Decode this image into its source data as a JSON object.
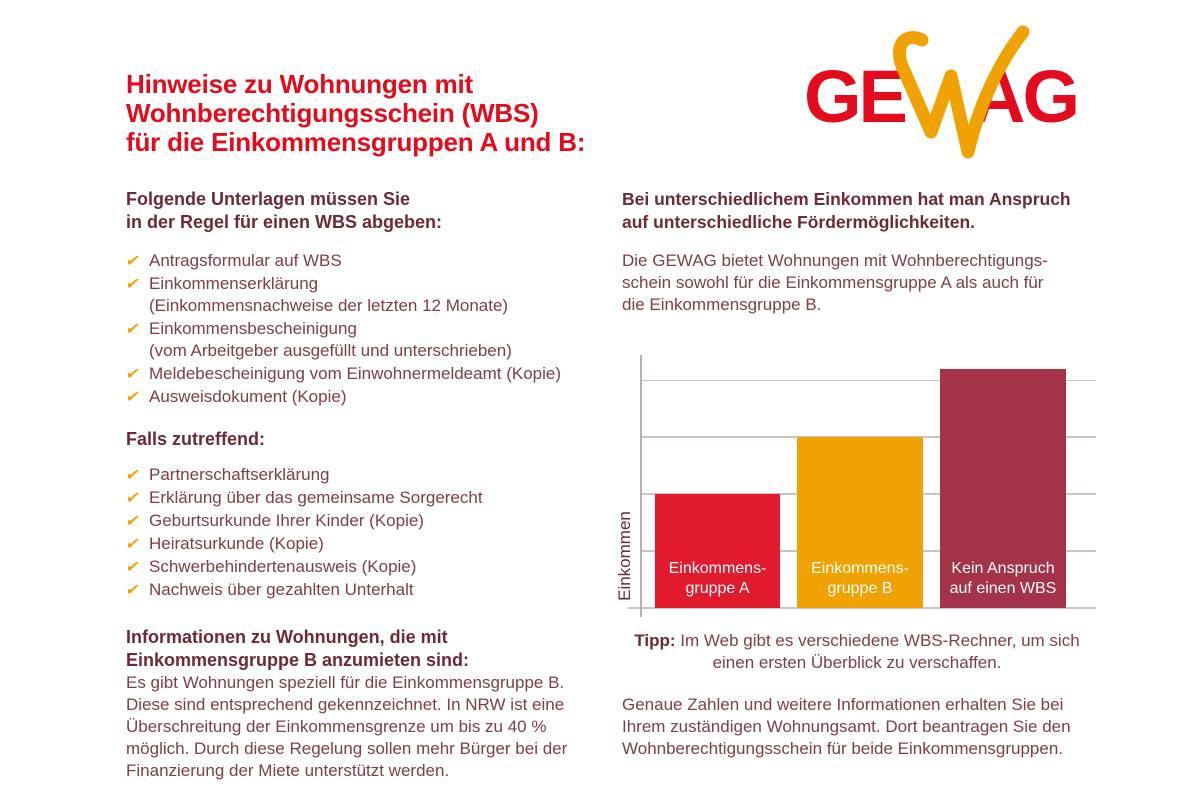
{
  "theme": {
    "red": "#e30b1c",
    "orange": "#f0a202",
    "maroon": "#7e3e47",
    "maroon-dark": "#6d2a35",
    "bar-red": "#e21a2e",
    "bar-orange": "#f0a202",
    "bar-maroon": "#a43248",
    "grid": "#cdc3c3",
    "axis": "#b9b0b0",
    "bg": "#ffffff",
    "bar-label": "#ffffff"
  },
  "icons": {
    "check": "✔"
  },
  "brand": {
    "name": "GEWAG",
    "ge": "GE",
    "w": "W",
    "ag": "AG"
  },
  "left": {
    "title": [
      "Hinweise zu Wohnungen mit",
      "Wohnberechtigungsschein (WBS)",
      "für die Einkommensgruppen A und B:"
    ],
    "documents": {
      "heading": [
        "Folgende Unterlagen müssen Sie",
        "in der Regel für einen WBS abgeben:"
      ],
      "items": [
        [
          "Antragsformular auf WBS"
        ],
        [
          "Einkommenserklärung",
          "(Einkommensnachweise der letzten 12 Monate)"
        ],
        [
          "Einkommensbescheinigung",
          "(vom Arbeitgeber ausgefüllt und unterschrieben)"
        ],
        [
          "Meldebescheinigung vom Einwohnermeldeamt (Kopie)"
        ],
        [
          "Ausweisdokument (Kopie)"
        ]
      ]
    },
    "conditional": {
      "heading": [
        "Falls zutreffend:"
      ],
      "items": [
        [
          "Partnerschaftserklärung"
        ],
        [
          "Erklärung über das gemeinsame Sorgerecht"
        ],
        [
          "Geburtsurkunde Ihrer Kinder (Kopie)"
        ],
        [
          "Heiratsurkunde (Kopie)"
        ],
        [
          "Schwerbehindertenausweis (Kopie)"
        ],
        [
          "Nachweis über gezahlten Unterhalt"
        ]
      ]
    },
    "groupb": {
      "heading": [
        "Informationen zu Wohnungen, die mit",
        "Einkommensgruppe B anzumieten sind:"
      ],
      "paragraph": [
        "Es gibt Wohnungen speziell für die Einkommensgruppe B.",
        "Diese sind entsprechend gekennzeichnet. In NRW ist eine",
        "Überschreitung der Einkommensgrenze um bis zu 40 %",
        "möglich. Durch diese Regelung sollen mehr Bürger bei der",
        "Finanzierung der Miete unterstützt werden."
      ]
    }
  },
  "right": {
    "heading": [
      "Bei unterschiedlichem Einkommen hat man Anspruch",
      "auf unterschiedliche Fördermöglichkeiten."
    ],
    "intro": [
      "Die GEWAG bietet Wohnungen mit Wohnberechtigungs-",
      "schein sowohl für die Einkommensgruppe A als auch für",
      "die Einkommensgruppe B."
    ],
    "tip": {
      "label": "Tipp:",
      "line1": "Im Web gibt es verschiedene WBS-Rechner, um sich",
      "line2": "einen ersten Überblick zu verschaffen."
    },
    "outro": [
      "Genaue Zahlen und weitere Informationen erhalten Sie bei",
      "Ihrem zuständigen Wohnungsamt. Dort beantragen Sie den",
      "Wohnberechtigungsschein für beide Einkommensgruppen."
    ]
  },
  "chart_data": {
    "type": "bar",
    "title": "",
    "xlabel": "",
    "ylabel": "Einkommen",
    "categories": [
      "Einkommensgruppe A",
      "Einkommensgruppe B",
      "Kein Anspruch auf einen WBS"
    ],
    "values": [
      2.0,
      3.0,
      4.2
    ],
    "ylim": [
      0,
      4.45
    ],
    "gridlines": [
      1,
      2,
      3,
      4
    ],
    "grid": true,
    "legend_position": "none",
    "axis_tick_labels": "none (qualitative axis)",
    "bar_label_lines": [
      [
        "Einkommens-",
        "gruppe A"
      ],
      [
        "Einkommens-",
        "gruppe B"
      ],
      [
        "Kein Anspruch",
        "auf einen WBS"
      ]
    ],
    "bar_colors": [
      "#e21a2e",
      "#f0a202",
      "#a43248"
    ]
  }
}
